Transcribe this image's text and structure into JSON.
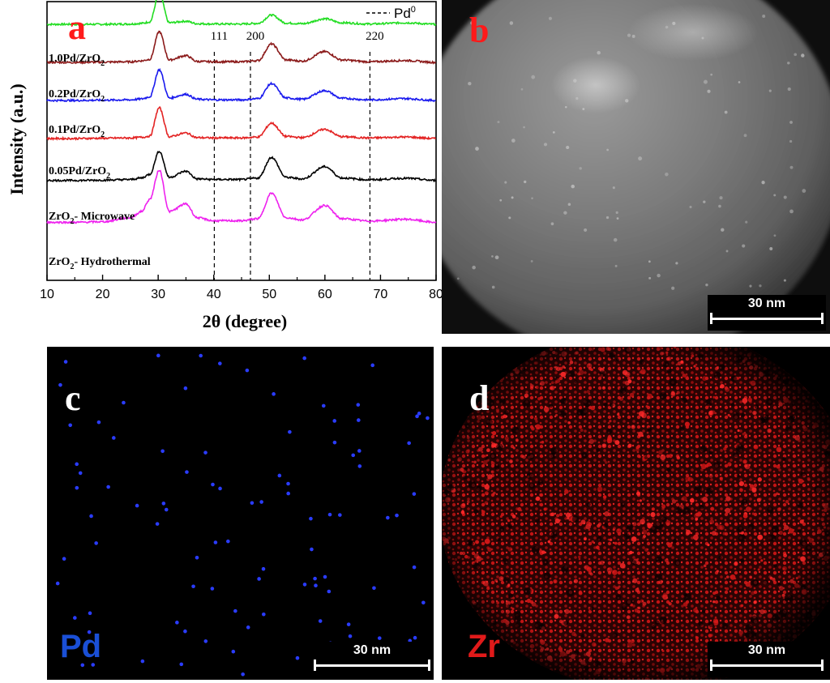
{
  "panel_a": {
    "letter": "a",
    "legend_label": "Pd",
    "legend_sup": "0",
    "ref_lines": [
      {
        "label": "111",
        "x": 40.1
      },
      {
        "label": "200",
        "x": 46.6
      },
      {
        "label": "220",
        "x": 68.1
      }
    ]
  },
  "panel_b": {
    "letter": "b",
    "scale_bar": "30 nm"
  },
  "panel_c": {
    "letter": "c",
    "element": "Pd",
    "element_color": "#1a4fd6",
    "scale_bar": "30 nm"
  },
  "panel_d": {
    "letter": "d",
    "element": "Zr",
    "element_color": "#e01a1a",
    "scale_bar": "30 nm"
  },
  "chart_data": {
    "type": "line",
    "title": "",
    "xlabel": "2θ (degree)",
    "ylabel": "Intensity (a.u.)",
    "xlim": [
      10,
      80
    ],
    "xticks": [
      10,
      20,
      30,
      40,
      50,
      60,
      70,
      80
    ],
    "x": [
      10,
      15,
      20,
      25,
      27,
      28.5,
      30.2,
      32,
      35,
      37,
      40,
      45,
      48,
      50.4,
      53,
      56,
      60,
      63,
      68,
      74.5,
      80
    ],
    "series": [
      {
        "name": "",
        "color": "#22dd22",
        "offset": 6,
        "values": [
          0,
          0,
          0,
          0.01,
          0.03,
          0.08,
          1.0,
          0.05,
          0.1,
          0.02,
          0.01,
          0.01,
          0.03,
          0.3,
          0.04,
          0.02,
          0.18,
          0.05,
          0.01,
          0.05,
          0
        ]
      },
      {
        "name": "1.0Pd/ZrO2",
        "color": "#8b1a1a",
        "offset": 5,
        "values": [
          0,
          0,
          0.01,
          0.02,
          0.05,
          0.1,
          1.0,
          0.08,
          0.22,
          0.03,
          0.02,
          0.02,
          0.06,
          0.6,
          0.08,
          0.04,
          0.35,
          0.08,
          0.02,
          0.06,
          0
        ]
      },
      {
        "name": "0.2Pd/ZrO2",
        "color": "#1a1aee",
        "offset": 4,
        "values": [
          0,
          0,
          0.01,
          0.02,
          0.05,
          0.12,
          1.0,
          0.08,
          0.2,
          0.04,
          0.02,
          0.02,
          0.06,
          0.55,
          0.08,
          0.04,
          0.32,
          0.07,
          0.02,
          0.06,
          0
        ]
      },
      {
        "name": "0.1Pd/ZrO2",
        "color": "#e32222",
        "offset": 3,
        "values": [
          0,
          0,
          0.01,
          0.02,
          0.04,
          0.08,
          1.0,
          0.06,
          0.18,
          0.03,
          0.02,
          0.02,
          0.05,
          0.5,
          0.07,
          0.03,
          0.3,
          0.06,
          0.02,
          0.05,
          0
        ]
      },
      {
        "name": "0.05Pd/ZrO2",
        "color": "#000000",
        "offset": 1.9,
        "values": [
          0,
          0,
          0.01,
          0.03,
          0.08,
          0.2,
          0.95,
          0.1,
          0.3,
          0.05,
          0.03,
          0.03,
          0.08,
          0.75,
          0.1,
          0.05,
          0.45,
          0.08,
          0.02,
          0.07,
          0
        ]
      },
      {
        "name": "ZrO2- Microwave",
        "color": "#ee22ee",
        "offset": 0.8,
        "values": [
          0,
          0,
          0.02,
          0.15,
          0.35,
          0.75,
          1.7,
          0.35,
          0.6,
          0.15,
          0.05,
          0.05,
          0.12,
          0.95,
          0.15,
          0.08,
          0.55,
          0.12,
          0.04,
          0.1,
          0
        ]
      }
    ],
    "legend_order": [
      "1.0Pd/ZrO2",
      "0.2Pd/ZrO2",
      "0.1Pd/ZrO2",
      "0.05Pd/ZrO2",
      "ZrO2- Microwave",
      "ZrO2- Hydrothermal"
    ],
    "legend_placement": "left, beside each trace"
  }
}
